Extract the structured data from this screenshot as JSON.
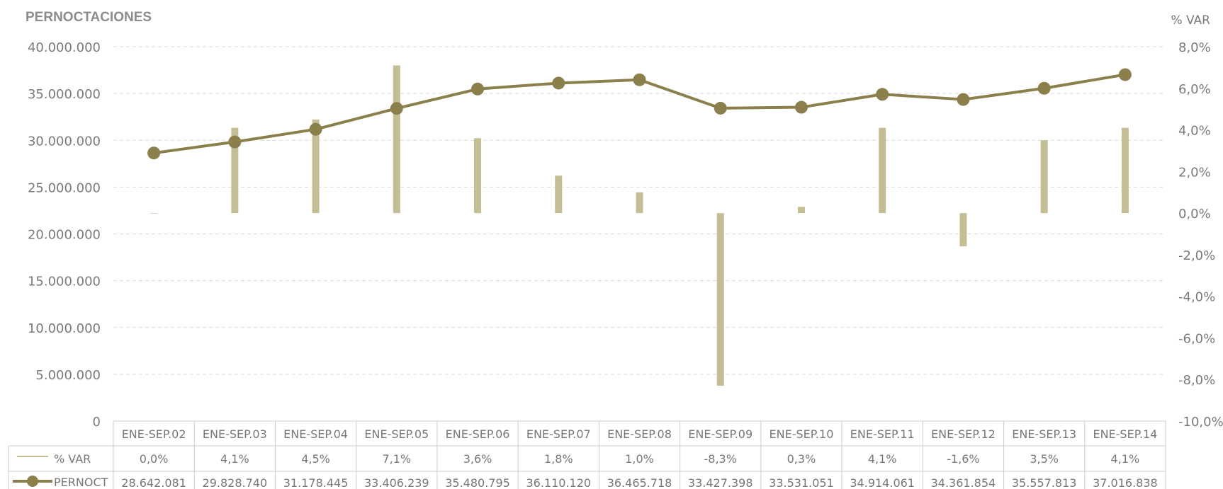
{
  "colors": {
    "line": "#8b7f4b",
    "bar": "#c5bd93",
    "grid": "#d9d9d9",
    "text": "#7a7a7a",
    "title": "#8c8c8c"
  },
  "chart_data": {
    "type": "bar+line",
    "title": "PERNOCTACIONES",
    "y2label": "% VAR",
    "categories": [
      "ENE-SEP.02",
      "ENE-SEP.03",
      "ENE-SEP.04",
      "ENE-SEP.05",
      "ENE-SEP.06",
      "ENE-SEP.07",
      "ENE-SEP.08",
      "ENE-SEP.09",
      "ENE-SEP.10",
      "ENE-SEP.11",
      "ENE-SEP.12",
      "ENE-SEP.13",
      "ENE-SEP.14"
    ],
    "y_ticks": [
      "0",
      "5.000.000",
      "10.000.000",
      "15.000.000",
      "20.000.000",
      "25.000.000",
      "30.000.000",
      "35.000.000",
      "40.000.000"
    ],
    "y2_ticks": [
      "-10,0%",
      "-8,0%",
      "-6,0%",
      "-4,0%",
      "-2,0%",
      "0,0%",
      "2,0%",
      "4,0%",
      "6,0%",
      "8,0%"
    ],
    "ylim": [
      0,
      40000000
    ],
    "y2lim": [
      -10,
      8
    ],
    "grid": true,
    "legend": "table-left",
    "series": [
      {
        "name": "% VAR",
        "type": "bar",
        "axis": "right",
        "values": [
          0.0,
          4.1,
          4.5,
          7.1,
          3.6,
          1.8,
          1.0,
          -8.3,
          0.3,
          4.1,
          -1.6,
          3.5,
          4.1
        ],
        "labels": [
          "0,0%",
          "4,1%",
          "4,5%",
          "7,1%",
          "3,6%",
          "1,8%",
          "1,0%",
          "-8,3%",
          "0,3%",
          "4,1%",
          "-1,6%",
          "3,5%",
          "4,1%"
        ]
      },
      {
        "name": "PERNOCT",
        "type": "line",
        "axis": "left",
        "values": [
          28642081,
          29828740,
          31178445,
          33406239,
          35480795,
          36110120,
          36465718,
          33427398,
          33531051,
          34914061,
          34361854,
          35557813,
          37016838
        ],
        "labels": [
          "28.642.081",
          "29.828.740",
          "31.178.445",
          "33.406.239",
          "35.480.795",
          "36.110.120",
          "36.465.718",
          "33.427.398",
          "33.531.051",
          "34.914.061",
          "34.361.854",
          "35.557.813",
          "37.016.838"
        ]
      }
    ]
  }
}
